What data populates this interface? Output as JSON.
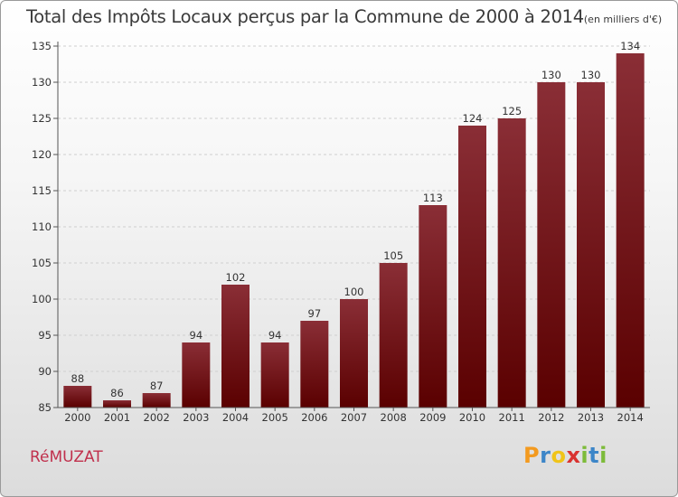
{
  "chart_title": "Total des Impôts Locaux perçus par la Commune de 2000 à 2014",
  "chart_unit": "(en milliers d'€)",
  "commune_name": "RéMUZAT",
  "brand": {
    "letters": [
      "P",
      "r",
      "o",
      "x",
      "i",
      "t",
      "i"
    ],
    "colors": [
      "#f39a1f",
      "#3d86c8",
      "#f0c419",
      "#d9322f",
      "#7dbb3a",
      "#3d86c8",
      "#7dbb3a"
    ]
  },
  "colors": {
    "bar_top": "#8a2e36",
    "bar_bottom": "#5a0000",
    "grid": "#cfcfcf",
    "axis": "#555555"
  },
  "chart_data": {
    "type": "bar",
    "title": "Total des Impôts Locaux perçus par la Commune de 2000 à 2014",
    "unit": "en milliers d'€",
    "categories": [
      "2000",
      "2001",
      "2002",
      "2003",
      "2004",
      "2005",
      "2006",
      "2007",
      "2008",
      "2009",
      "2010",
      "2011",
      "2012",
      "2013",
      "2014"
    ],
    "values": [
      88,
      86,
      87,
      94,
      102,
      94,
      97,
      100,
      105,
      113,
      124,
      125,
      130,
      130,
      134
    ],
    "yticks": [
      85,
      90,
      95,
      100,
      105,
      110,
      115,
      120,
      125,
      130,
      135
    ],
    "ylim": [
      85,
      135
    ],
    "grid": true,
    "xlabel": "",
    "ylabel": ""
  }
}
